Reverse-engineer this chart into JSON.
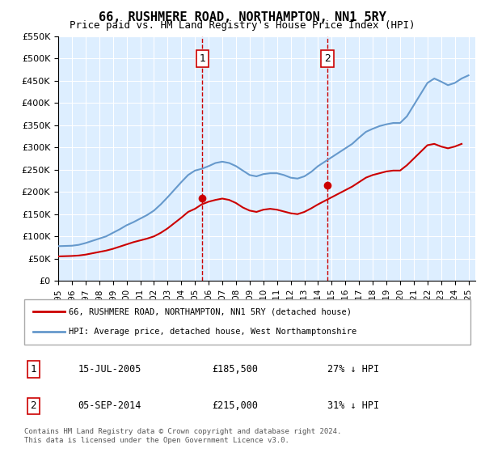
{
  "title": "66, RUSHMERE ROAD, NORTHAMPTON, NN1 5RY",
  "subtitle": "Price paid vs. HM Land Registry's House Price Index (HPI)",
  "ylabel_ticks": [
    "£0",
    "£50K",
    "£100K",
    "£150K",
    "£200K",
    "£250K",
    "£300K",
    "£350K",
    "£400K",
    "£450K",
    "£500K",
    "£550K"
  ],
  "ylim": [
    0,
    550000
  ],
  "xlim_start": 1995.0,
  "xlim_end": 2025.5,
  "sale1_x": 2005.54,
  "sale1_y": 185500,
  "sale2_x": 2014.68,
  "sale2_y": 215000,
  "sale1_label": "1",
  "sale2_label": "2",
  "legend_line1": "66, RUSHMERE ROAD, NORTHAMPTON, NN1 5RY (detached house)",
  "legend_line2": "HPI: Average price, detached house, West Northamptonshire",
  "ann1_num": "1",
  "ann1_date": "15-JUL-2005",
  "ann1_price": "£185,500",
  "ann1_hpi": "27% ↓ HPI",
  "ann2_num": "2",
  "ann2_date": "05-SEP-2014",
  "ann2_price": "£215,000",
  "ann2_hpi": "31% ↓ HPI",
  "copyright": "Contains HM Land Registry data © Crown copyright and database right 2024.\nThis data is licensed under the Open Government Licence v3.0.",
  "red_color": "#cc0000",
  "blue_color": "#6699cc",
  "bg_color": "#ddeeff",
  "hpi_years": [
    1995,
    1995.5,
    1996,
    1996.5,
    1997,
    1997.5,
    1998,
    1998.5,
    1999,
    1999.5,
    2000,
    2000.5,
    2001,
    2001.5,
    2002,
    2002.5,
    2003,
    2003.5,
    2004,
    2004.5,
    2005,
    2005.5,
    2006,
    2006.5,
    2007,
    2007.5,
    2008,
    2008.5,
    2009,
    2009.5,
    2010,
    2010.5,
    2011,
    2011.5,
    2012,
    2012.5,
    2013,
    2013.5,
    2014,
    2014.5,
    2015,
    2015.5,
    2016,
    2016.5,
    2017,
    2017.5,
    2018,
    2018.5,
    2019,
    2019.5,
    2020,
    2020.5,
    2021,
    2021.5,
    2022,
    2022.5,
    2023,
    2023.5,
    2024,
    2024.5,
    2025
  ],
  "hpi_values": [
    78000,
    78500,
    79000,
    81000,
    85000,
    90000,
    95000,
    100000,
    108000,
    116000,
    125000,
    132000,
    140000,
    148000,
    158000,
    172000,
    188000,
    205000,
    222000,
    238000,
    248000,
    252000,
    258000,
    265000,
    268000,
    265000,
    258000,
    248000,
    238000,
    235000,
    240000,
    242000,
    242000,
    238000,
    232000,
    230000,
    235000,
    245000,
    258000,
    268000,
    278000,
    288000,
    298000,
    308000,
    322000,
    335000,
    342000,
    348000,
    352000,
    355000,
    355000,
    370000,
    395000,
    420000,
    445000,
    455000,
    448000,
    440000,
    445000,
    455000,
    462000
  ],
  "red_years": [
    1995,
    1995.5,
    1996,
    1996.5,
    1997,
    1997.5,
    1998,
    1998.5,
    1999,
    1999.5,
    2000,
    2000.5,
    2001,
    2001.5,
    2002,
    2002.5,
    2003,
    2003.5,
    2004,
    2004.5,
    2005,
    2005.5,
    2006,
    2006.5,
    2007,
    2007.5,
    2008,
    2008.5,
    2009,
    2009.5,
    2010,
    2010.5,
    2011,
    2011.5,
    2012,
    2012.5,
    2013,
    2013.5,
    2014,
    2014.5,
    2015,
    2015.5,
    2016,
    2016.5,
    2017,
    2017.5,
    2018,
    2018.5,
    2019,
    2019.5,
    2020,
    2020.5,
    2021,
    2021.5,
    2022,
    2022.5,
    2023,
    2023.5,
    2024,
    2024.5
  ],
  "red_values": [
    55000,
    55500,
    56000,
    57000,
    59000,
    62000,
    65000,
    68000,
    72000,
    77000,
    82000,
    87000,
    91000,
    95000,
    100000,
    108000,
    118000,
    130000,
    142000,
    155000,
    162000,
    172000,
    178000,
    182000,
    185000,
    182000,
    175000,
    165000,
    158000,
    155000,
    160000,
    162000,
    160000,
    156000,
    152000,
    150000,
    155000,
    163000,
    172000,
    180000,
    188000,
    196000,
    204000,
    212000,
    222000,
    232000,
    238000,
    242000,
    246000,
    248000,
    248000,
    260000,
    275000,
    290000,
    305000,
    308000,
    302000,
    298000,
    302000,
    308000
  ]
}
